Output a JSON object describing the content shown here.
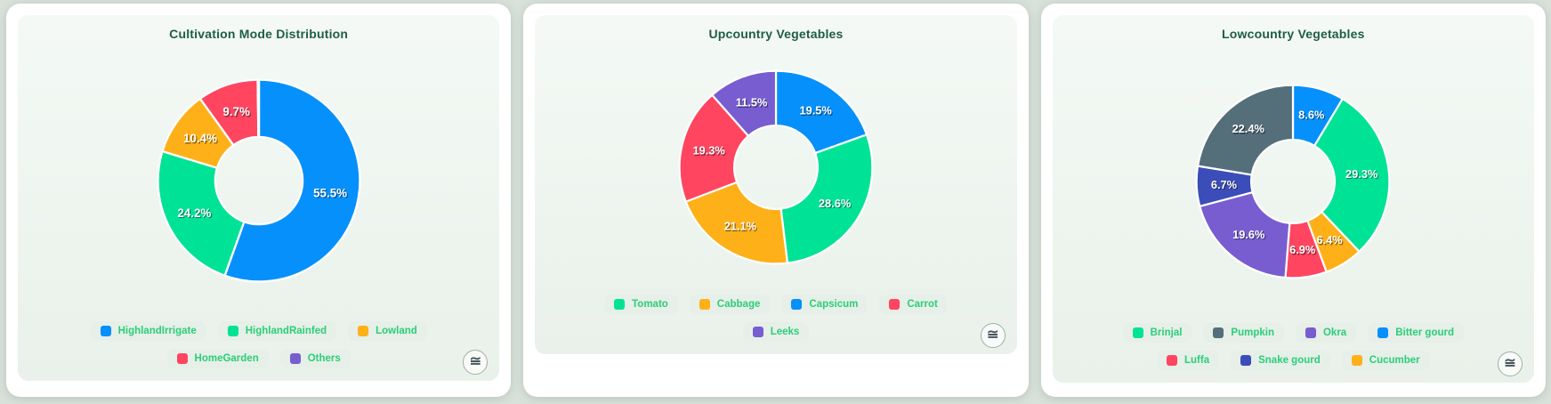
{
  "page": {
    "background": "#d8e1da",
    "card_background": "#ffffff",
    "panel_gradient_top": "#f4f9f5",
    "panel_gradient_bottom": "#e9f1ea",
    "title_color": "#1e5e45",
    "legend_text_color": "#2bce78",
    "legend_pill_background": "#e6efe8"
  },
  "charts": [
    {
      "title": "Cultivation Mode Distribution",
      "menu_icon": "≅",
      "chart_data": {
        "type": "donut",
        "label_format": "percent",
        "segments": [
          {
            "label": "HighlandIrrigate",
            "value": 55.5,
            "color": "#0690FB"
          },
          {
            "label": "HighlandRainfed",
            "value": 24.2,
            "color": "#00E396"
          },
          {
            "label": "Lowland",
            "value": 10.4,
            "color": "#FEB019"
          },
          {
            "label": "HomeGarden",
            "value": 9.7,
            "color": "#FF4560"
          },
          {
            "label": "Others",
            "value": 0.2,
            "color": "#775DD0"
          }
        ],
        "visible_data_labels": [
          "55.5%",
          "24.2%",
          "10.4%",
          "9.7%"
        ],
        "legend_order": [
          "HighlandIrrigate",
          "HighlandRainfed",
          "Lowland",
          "HomeGarden",
          "Others"
        ],
        "legend_position": "bottom"
      }
    },
    {
      "title": "Upcountry Vegetables",
      "menu_icon": "≅",
      "chart_data": {
        "type": "donut",
        "label_format": "percent",
        "segments": [
          {
            "label": "Capsicum",
            "value": 19.5,
            "color": "#0690FB"
          },
          {
            "label": "Tomato",
            "value": 28.6,
            "color": "#00E396"
          },
          {
            "label": "Cabbage",
            "value": 21.1,
            "color": "#FEB019"
          },
          {
            "label": "Carrot",
            "value": 19.3,
            "color": "#FF4560"
          },
          {
            "label": "Leeks",
            "value": 11.5,
            "color": "#775DD0"
          }
        ],
        "visible_data_labels": [
          "19.5%",
          "28.6%",
          "21.1%",
          "19.3%",
          "11.5%"
        ],
        "legend_order": [
          "Tomato",
          "Cabbage",
          "Capsicum",
          "Carrot",
          "Leeks"
        ],
        "legend_position": "bottom"
      }
    },
    {
      "title": "Lowcountry Vegetables",
      "menu_icon": "≅",
      "chart_data": {
        "type": "donut",
        "label_format": "percent",
        "segments": [
          {
            "label": "Bitter gourd",
            "value": 8.6,
            "color": "#0690FB"
          },
          {
            "label": "Brinjal",
            "value": 29.3,
            "color": "#00E396"
          },
          {
            "label": "Cucumber",
            "value": 6.4,
            "color": "#FEB019"
          },
          {
            "label": "Luffa",
            "value": 6.9,
            "color": "#FF4560"
          },
          {
            "label": "Okra",
            "value": 19.6,
            "color": "#775DD0"
          },
          {
            "label": "Snake gourd",
            "value": 6.7,
            "color": "#3B4DB8"
          },
          {
            "label": "Pumpkin",
            "value": 22.4,
            "color": "#546E7A"
          }
        ],
        "visible_data_labels": [
          "8.6%",
          "29.3%",
          "6.4%",
          "6.9%",
          "19.6%",
          "6.7%",
          "22.4%"
        ],
        "legend_order": [
          "Brinjal",
          "Pumpkin",
          "Okra",
          "Bitter gourd",
          "Luffa",
          "Snake gourd",
          "Cucumber"
        ],
        "legend_position": "bottom"
      }
    }
  ]
}
